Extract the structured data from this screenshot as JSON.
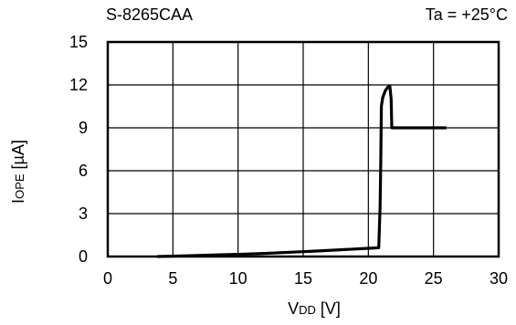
{
  "chart_data": {
    "type": "line",
    "header_left": "S-8265CAA",
    "header_right": "Ta = +25°C",
    "ylabel_main": "I",
    "ylabel_sub": "OPE",
    "ylabel_unit": " [µA]",
    "xlabel_main": "V",
    "xlabel_sub": "DD",
    "xlabel_unit": " [V]",
    "xlim": [
      0,
      30
    ],
    "ylim": [
      0,
      15
    ],
    "xticks": [
      "0",
      "5",
      "10",
      "15",
      "20",
      "25",
      "30"
    ],
    "yticks": [
      "0",
      "3",
      "6",
      "9",
      "12",
      "15"
    ],
    "grid": true,
    "series": [
      {
        "x": [
          3.8,
          6,
          8,
          10,
          12,
          14,
          16,
          18,
          19.5,
          20.5,
          20.8,
          20.9,
          20.95,
          21.0,
          21.1,
          21.3,
          21.5,
          21.65,
          21.75,
          21.8,
          21.85,
          22.5,
          24,
          26
        ],
        "y": [
          0.0,
          0.05,
          0.1,
          0.15,
          0.22,
          0.3,
          0.38,
          0.48,
          0.55,
          0.6,
          0.62,
          3.5,
          6.5,
          10.5,
          11.1,
          11.6,
          11.85,
          11.9,
          11.0,
          9.0,
          9.0,
          9.0,
          9.0,
          9.0
        ]
      }
    ]
  }
}
